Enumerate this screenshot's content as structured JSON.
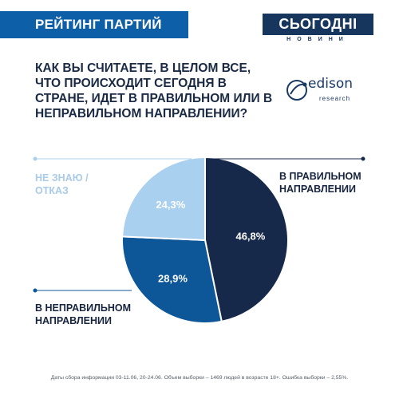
{
  "header": {
    "title": "РЕЙТИНГ ПАРТИЙ"
  },
  "brand": {
    "name": "СЬОГОДНІ",
    "sub": "НОВИНИ"
  },
  "question": "КАК ВЫ СЧИТАЕТЕ, В ЦЕЛОМ ВСЕ, ЧТО ПРОИСХОДИТ СЕГОДНЯ В СТРАНЕ, ИДЕТ В ПРАВИЛЬНОМ ИЛИ В НЕПРАВИЛЬНОМ НАПРАВЛЕНИИ?",
  "logo": {
    "name": "edison",
    "sub": "research"
  },
  "footnote": "Даты сбора информации 03-11.06, 20-24.06. Объем выборки – 1469 людей в возрасте 18+. Ошибка выборки – 2,55%.",
  "colors": {
    "accent": "#0d5fa8",
    "dark": "#17365d"
  },
  "chart_data": {
    "type": "pie",
    "slices": [
      {
        "label": "В ПРАВИЛЬНОМ НАПРАВЛЕНИИ",
        "value": 46.8,
        "display": "46,8%",
        "color": "#17294a"
      },
      {
        "label": "В НЕПРАВИЛЬНОМ НАПРАВЛЕНИИ",
        "value": 28.9,
        "display": "28,9%",
        "color": "#0d5799"
      },
      {
        "label": "НЕ ЗНАЮ / ОТКАЗ",
        "value": 24.3,
        "display": "24,3%",
        "color": "#a9d0ef"
      }
    ]
  }
}
